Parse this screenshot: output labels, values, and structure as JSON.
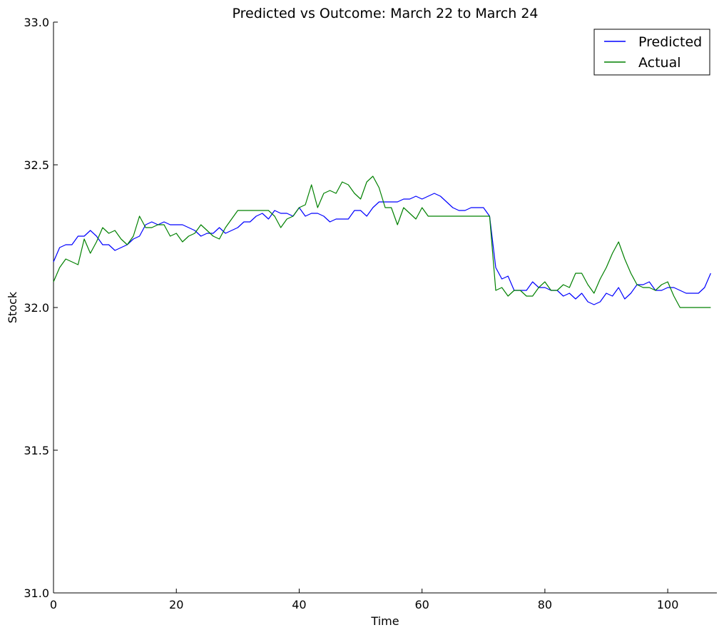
{
  "chart_data": {
    "type": "line",
    "title": "Predicted vs Outcome: March 22 to March 24",
    "xlabel": "Time",
    "ylabel": "Stock",
    "xlim": [
      0,
      108
    ],
    "ylim": [
      31.0,
      33.0
    ],
    "x_ticks": [
      0,
      20,
      40,
      60,
      80,
      100
    ],
    "x_tick_labels": [
      "0",
      "20",
      "40",
      "60",
      "80",
      "100"
    ],
    "y_ticks": [
      31.0,
      31.5,
      32.0,
      32.5,
      33.0
    ],
    "y_tick_labels": [
      "31.0",
      "31.5",
      "32.0",
      "32.5",
      "33.0"
    ],
    "grid": false,
    "legend_position": "top-right",
    "series": [
      {
        "name": "Predicted",
        "color": "#0000ff",
        "values": [
          32.16,
          32.21,
          32.22,
          32.22,
          32.25,
          32.25,
          32.27,
          32.25,
          32.22,
          32.22,
          32.2,
          32.21,
          32.22,
          32.24,
          32.25,
          32.29,
          32.3,
          32.29,
          32.3,
          32.29,
          32.29,
          32.29,
          32.28,
          32.27,
          32.25,
          32.26,
          32.26,
          32.28,
          32.26,
          32.27,
          32.28,
          32.3,
          32.3,
          32.32,
          32.33,
          32.31,
          32.34,
          32.33,
          32.33,
          32.32,
          32.35,
          32.32,
          32.33,
          32.33,
          32.32,
          32.3,
          32.31,
          32.31,
          32.31,
          32.34,
          32.34,
          32.32,
          32.35,
          32.37,
          32.37,
          32.37,
          32.37,
          32.38,
          32.38,
          32.39,
          32.38,
          32.39,
          32.4,
          32.39,
          32.37,
          32.35,
          32.34,
          32.34,
          32.35,
          32.35,
          32.35,
          32.32,
          32.14,
          32.1,
          32.11,
          32.06,
          32.06,
          32.06,
          32.09,
          32.07,
          32.07,
          32.06,
          32.06,
          32.04,
          32.05,
          32.03,
          32.05,
          32.02,
          32.01,
          32.02,
          32.05,
          32.04,
          32.07,
          32.03,
          32.05,
          32.08,
          32.08,
          32.09,
          32.06,
          32.06,
          32.07,
          32.07,
          32.06,
          32.05,
          32.05,
          32.05,
          32.07,
          32.12
        ]
      },
      {
        "name": "Actual",
        "color": "#008000",
        "values": [
          32.09,
          32.14,
          32.17,
          32.16,
          32.15,
          32.24,
          32.19,
          32.23,
          32.28,
          32.26,
          32.27,
          32.24,
          32.22,
          32.25,
          32.32,
          32.28,
          32.28,
          32.29,
          32.29,
          32.25,
          32.26,
          32.23,
          32.25,
          32.26,
          32.29,
          32.27,
          32.25,
          32.24,
          32.28,
          32.31,
          32.34,
          32.34,
          32.34,
          32.34,
          32.34,
          32.34,
          32.32,
          32.28,
          32.31,
          32.32,
          32.35,
          32.36,
          32.43,
          32.35,
          32.4,
          32.41,
          32.4,
          32.44,
          32.43,
          32.4,
          32.38,
          32.44,
          32.46,
          32.42,
          32.35,
          32.35,
          32.29,
          32.35,
          32.33,
          32.31,
          32.35,
          32.32,
          32.32,
          32.32,
          32.32,
          32.32,
          32.32,
          32.32,
          32.32,
          32.32,
          32.32,
          32.32,
          32.06,
          32.07,
          32.04,
          32.06,
          32.06,
          32.04,
          32.04,
          32.07,
          32.09,
          32.06,
          32.06,
          32.08,
          32.07,
          32.12,
          32.12,
          32.08,
          32.05,
          32.1,
          32.14,
          32.19,
          32.23,
          32.17,
          32.12,
          32.08,
          32.07,
          32.07,
          32.06,
          32.08,
          32.09,
          32.04,
          32.0,
          32.0,
          32.0,
          32.0,
          32.0,
          32.0
        ]
      }
    ]
  }
}
